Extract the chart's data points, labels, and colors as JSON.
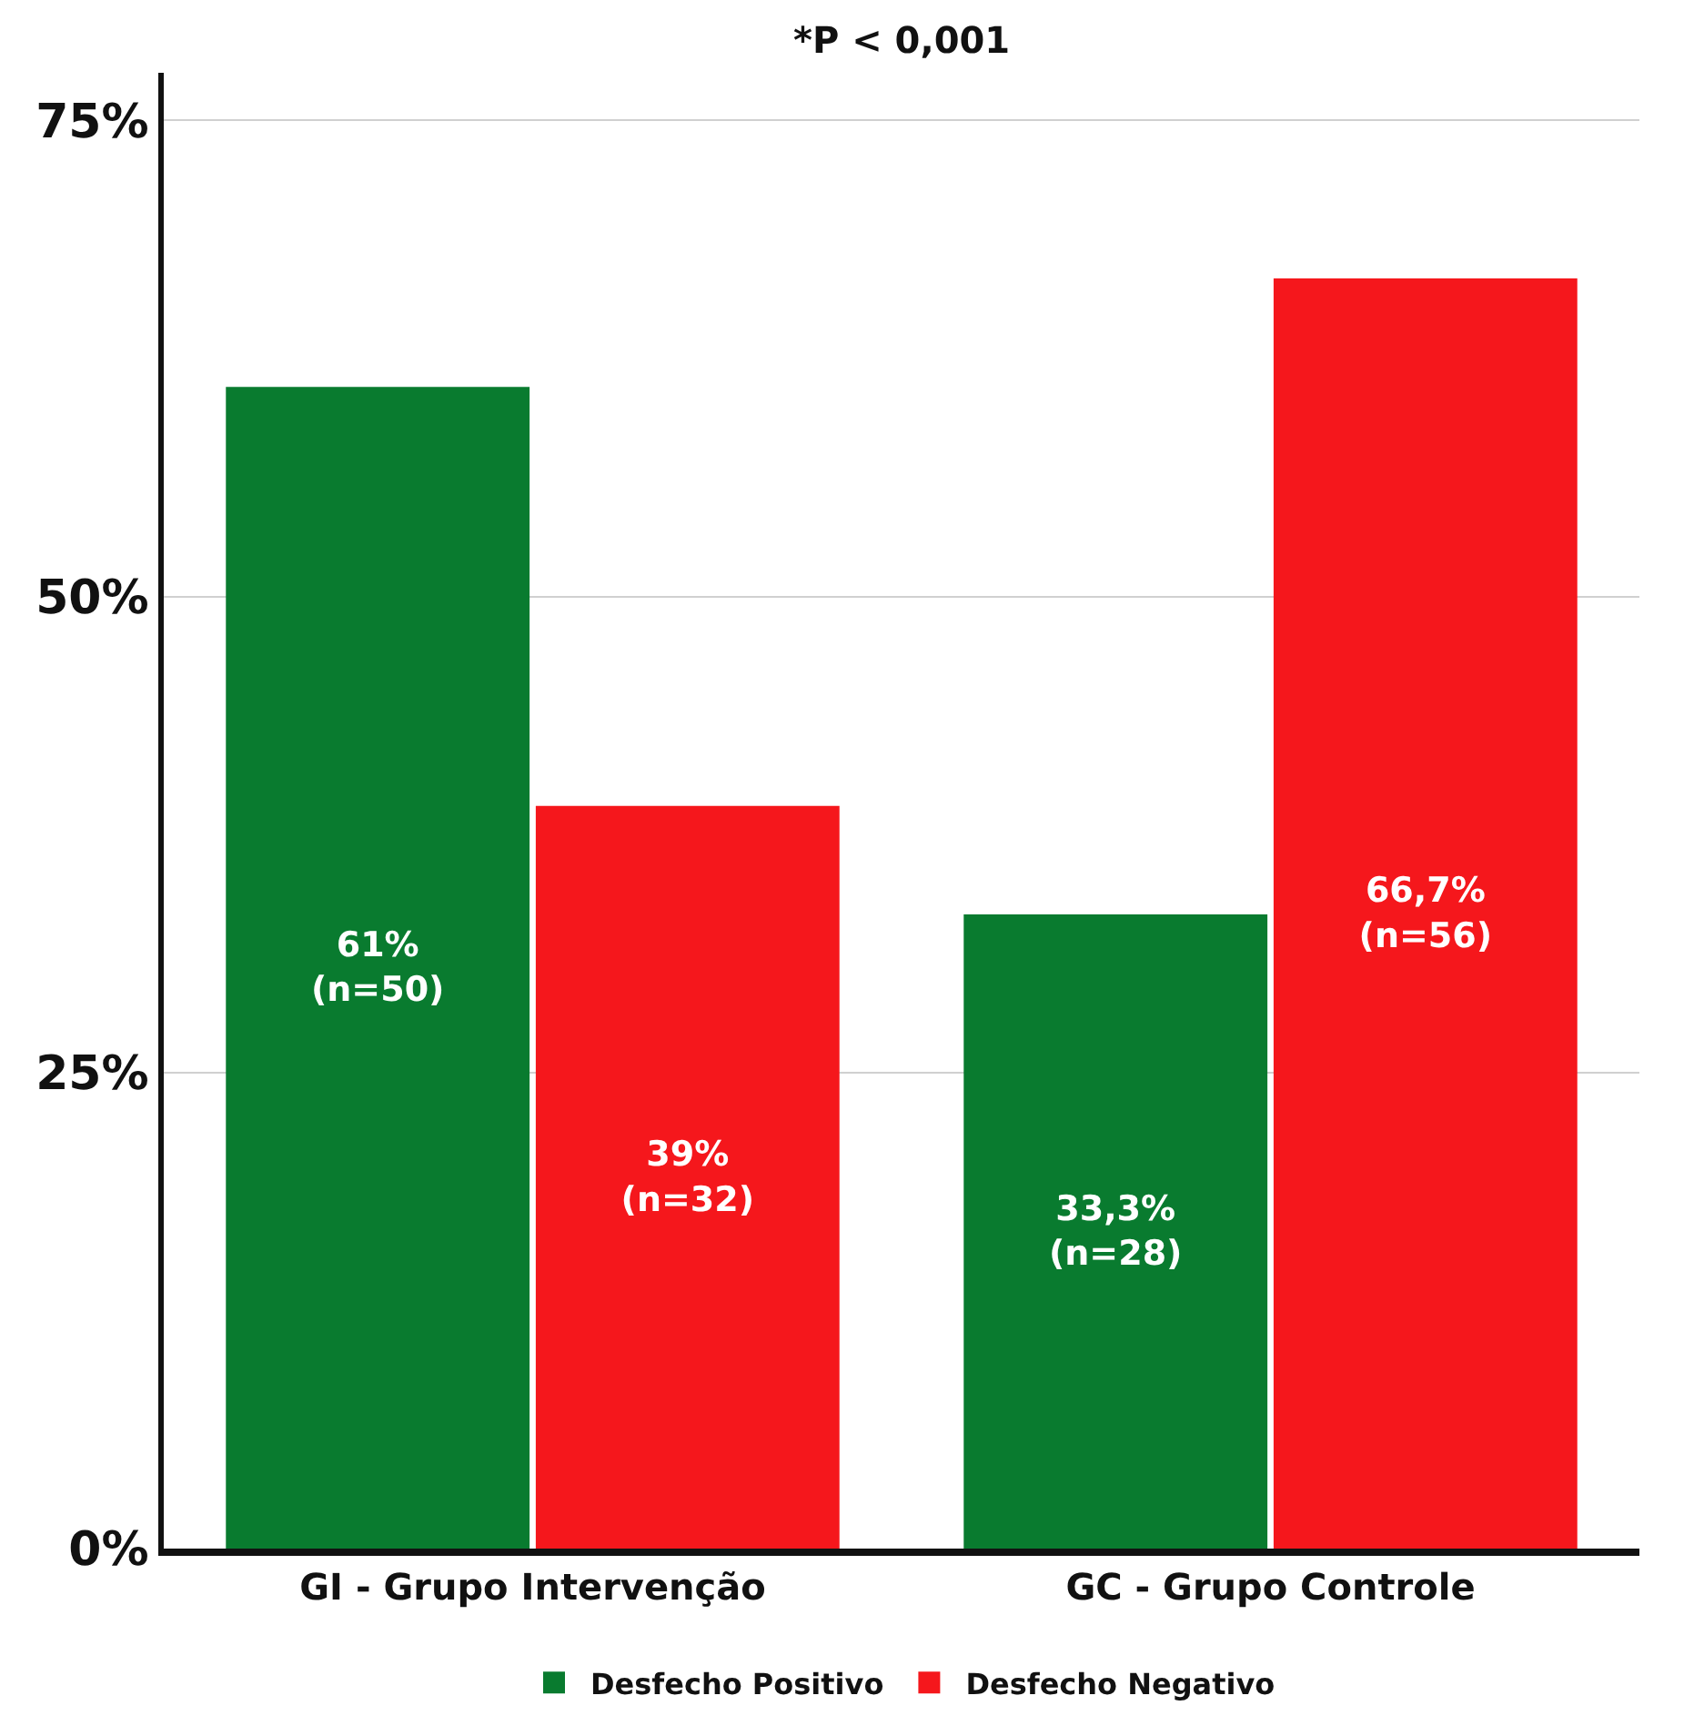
{
  "chart_data": {
    "type": "bar",
    "categories": [
      "GI - Grupo Intervenção",
      "GC - Grupo Controle"
    ],
    "series": [
      {
        "name": "Desfecho Positivo",
        "color": "#097b2f",
        "values": [
          61,
          33.3
        ],
        "value_labels": [
          "61%\n(n=50)",
          "33,3%\n(n=28)"
        ]
      },
      {
        "name": "Desfecho Negativo",
        "color": "#f5171c",
        "values": [
          39,
          66.7
        ],
        "value_labels": [
          "39%\n(n=32)",
          "66,7%\n(n=56)"
        ]
      }
    ],
    "ylim": [
      0,
      77.5
    ],
    "yticks": [
      {
        "value": 0,
        "label": "0%"
      },
      {
        "value": 25,
        "label": "25%"
      },
      {
        "value": 50,
        "label": "50%"
      },
      {
        "value": 75,
        "label": "75%"
      }
    ],
    "grid": "y",
    "legend": "bottom",
    "annotations": [
      "*P < 0,001"
    ]
  }
}
